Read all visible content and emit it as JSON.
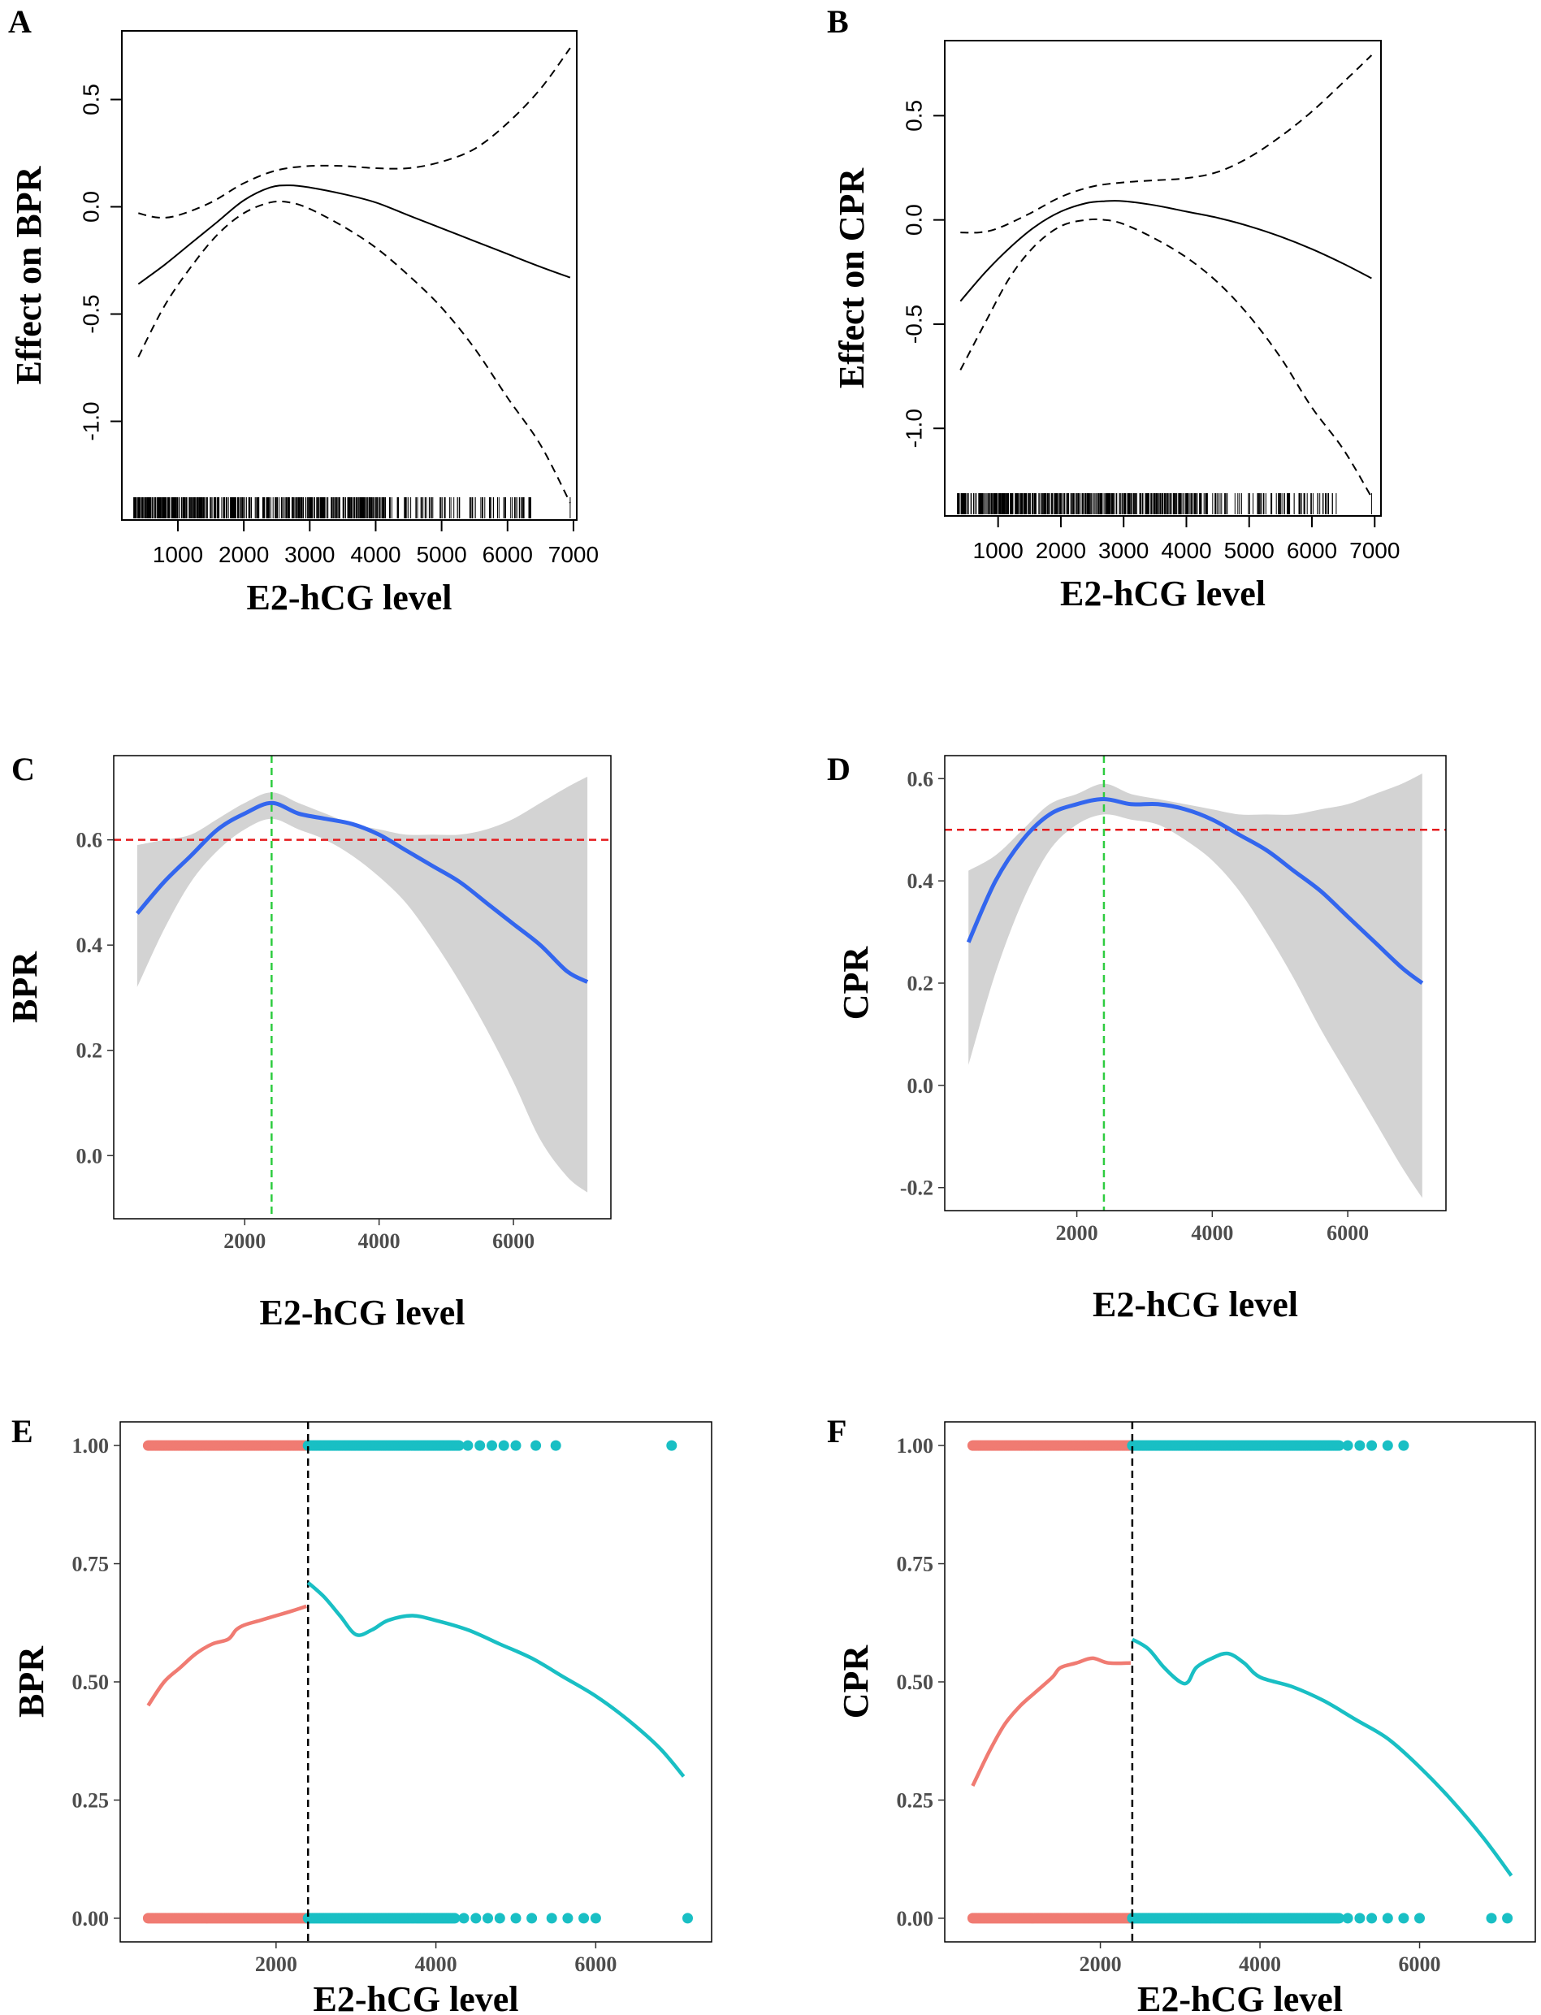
{
  "chart_data": [
    {
      "panel": "A",
      "type": "line",
      "xlabel": "E2-hCG level",
      "ylabel": "Effect on BPR",
      "xlim": [
        150,
        7050
      ],
      "ylim": [
        -1.46,
        0.82
      ],
      "xticks": [
        1000,
        2000,
        3000,
        4000,
        5000,
        6000,
        7000
      ],
      "yticks": [
        -1.0,
        -0.5,
        0.0,
        0.5
      ],
      "ytick_labels": [
        "-1.0",
        "-0.5",
        "0.0",
        "0.5"
      ],
      "series": [
        {
          "role": "fit",
          "style": "solid",
          "x": [
            400,
            800,
            1200,
            1600,
            2000,
            2400,
            2700,
            3000,
            3500,
            4000,
            4500,
            5000,
            5500,
            6000,
            6500,
            6950
          ],
          "y": [
            -0.36,
            -0.27,
            -0.17,
            -0.07,
            0.03,
            0.09,
            0.1,
            0.09,
            0.06,
            0.02,
            -0.04,
            -0.1,
            -0.16,
            -0.22,
            -0.28,
            -0.33
          ]
        },
        {
          "role": "upper",
          "style": "dashed",
          "x": [
            400,
            700,
            1000,
            1500,
            2000,
            2500,
            3000,
            3500,
            4000,
            4500,
            5000,
            5500,
            6000,
            6500,
            6950
          ],
          "y": [
            -0.03,
            -0.05,
            -0.04,
            0.02,
            0.11,
            0.17,
            0.19,
            0.19,
            0.18,
            0.18,
            0.21,
            0.27,
            0.39,
            0.55,
            0.74
          ]
        },
        {
          "role": "lower",
          "style": "dashed",
          "x": [
            400,
            800,
            1200,
            1600,
            2000,
            2400,
            2700,
            3000,
            3500,
            4000,
            4500,
            5000,
            5500,
            6000,
            6500,
            6950
          ],
          "y": [
            -0.7,
            -0.46,
            -0.28,
            -0.13,
            -0.03,
            0.02,
            0.02,
            -0.01,
            -0.09,
            -0.19,
            -0.32,
            -0.47,
            -0.66,
            -0.89,
            -1.11,
            -1.38
          ]
        }
      ],
      "rug_range": [
        330,
        6950
      ]
    },
    {
      "panel": "B",
      "type": "line",
      "xlabel": "E2-hCG level",
      "ylabel": "Effect on CPR",
      "xlim": [
        150,
        7100
      ],
      "ylim": [
        -1.42,
        0.86
      ],
      "xticks": [
        1000,
        2000,
        3000,
        4000,
        5000,
        6000,
        7000
      ],
      "yticks": [
        -1.0,
        -0.5,
        0.0,
        0.5
      ],
      "ytick_labels": [
        "-1.0",
        "-0.5",
        "0.0",
        "0.5"
      ],
      "series": [
        {
          "role": "fit",
          "style": "solid",
          "x": [
            400,
            800,
            1200,
            1600,
            2000,
            2400,
            2700,
            3000,
            3500,
            4000,
            4500,
            5000,
            5500,
            6000,
            6500,
            6950
          ],
          "y": [
            -0.39,
            -0.25,
            -0.13,
            -0.03,
            0.04,
            0.08,
            0.09,
            0.09,
            0.07,
            0.04,
            0.01,
            -0.03,
            -0.08,
            -0.14,
            -0.21,
            -0.28
          ]
        },
        {
          "role": "upper",
          "style": "dashed",
          "x": [
            400,
            700,
            1000,
            1500,
            2000,
            2500,
            3000,
            3500,
            4000,
            4500,
            5000,
            5500,
            6000,
            6500,
            6950
          ],
          "y": [
            -0.06,
            -0.06,
            -0.04,
            0.03,
            0.11,
            0.16,
            0.18,
            0.19,
            0.2,
            0.23,
            0.3,
            0.4,
            0.52,
            0.66,
            0.79
          ]
        },
        {
          "role": "lower",
          "style": "dashed",
          "x": [
            400,
            800,
            1200,
            1600,
            2000,
            2400,
            2700,
            3000,
            3500,
            4000,
            4500,
            5000,
            5500,
            6000,
            6500,
            6950
          ],
          "y": [
            -0.72,
            -0.49,
            -0.27,
            -0.12,
            -0.03,
            0.0,
            0.0,
            -0.02,
            -0.09,
            -0.18,
            -0.3,
            -0.46,
            -0.66,
            -0.9,
            -1.1,
            -1.33
          ]
        }
      ],
      "rug_range": [
        350,
        6950
      ]
    },
    {
      "panel": "C",
      "type": "line",
      "xlabel": "E2-hCG level",
      "ylabel": "BPR",
      "xlim": [
        50,
        7450
      ],
      "ylim": [
        -0.12,
        0.76
      ],
      "xticks": [
        2000,
        4000,
        6000
      ],
      "yticks": [
        0.0,
        0.2,
        0.4,
        0.6
      ],
      "ytick_labels": [
        "0.0",
        "0.2",
        "0.4",
        "0.6"
      ],
      "hline": 0.6,
      "vline": 2400,
      "band_x": [
        400,
        800,
        1200,
        1600,
        2000,
        2400,
        2800,
        3200,
        3600,
        4000,
        4400,
        4800,
        5200,
        5600,
        6000,
        6400,
        6800,
        7100
      ],
      "band_upper": [
        0.59,
        0.6,
        0.61,
        0.64,
        0.67,
        0.69,
        0.67,
        0.65,
        0.63,
        0.62,
        0.61,
        0.61,
        0.61,
        0.62,
        0.64,
        0.67,
        0.7,
        0.72
      ],
      "band_lower": [
        0.32,
        0.43,
        0.52,
        0.58,
        0.62,
        0.64,
        0.62,
        0.6,
        0.57,
        0.53,
        0.48,
        0.41,
        0.33,
        0.24,
        0.14,
        0.03,
        -0.04,
        -0.07
      ],
      "series": [
        {
          "role": "fit",
          "x": [
            400,
            800,
            1200,
            1600,
            2000,
            2400,
            2800,
            3200,
            3600,
            4000,
            4400,
            4800,
            5200,
            5600,
            6000,
            6400,
            6800,
            7100
          ],
          "y": [
            0.46,
            0.52,
            0.57,
            0.62,
            0.65,
            0.67,
            0.65,
            0.64,
            0.63,
            0.61,
            0.58,
            0.55,
            0.52,
            0.48,
            0.44,
            0.4,
            0.35,
            0.33
          ]
        }
      ]
    },
    {
      "panel": "D",
      "type": "line",
      "xlabel": "E2-hCG level",
      "ylabel": "CPR",
      "xlim": [
        50,
        7450
      ],
      "ylim": [
        -0.245,
        0.645
      ],
      "xticks": [
        2000,
        4000,
        6000
      ],
      "yticks": [
        -0.2,
        0.0,
        0.2,
        0.4,
        0.6
      ],
      "ytick_labels": [
        "-0.2",
        "0.0",
        "0.2",
        "0.4",
        "0.6"
      ],
      "hline": 0.5,
      "vline": 2400,
      "band_x": [
        400,
        800,
        1200,
        1600,
        2000,
        2400,
        2800,
        3200,
        3600,
        4000,
        4400,
        4800,
        5200,
        5600,
        6000,
        6400,
        6800,
        7100
      ],
      "band_upper": [
        0.42,
        0.45,
        0.5,
        0.55,
        0.57,
        0.59,
        0.57,
        0.56,
        0.55,
        0.54,
        0.53,
        0.53,
        0.53,
        0.54,
        0.55,
        0.57,
        0.59,
        0.61
      ],
      "band_lower": [
        0.04,
        0.22,
        0.36,
        0.46,
        0.51,
        0.53,
        0.52,
        0.51,
        0.48,
        0.44,
        0.38,
        0.3,
        0.21,
        0.11,
        0.02,
        -0.07,
        -0.16,
        -0.22
      ],
      "series": [
        {
          "role": "fit",
          "x": [
            400,
            800,
            1200,
            1600,
            2000,
            2400,
            2800,
            3200,
            3600,
            4000,
            4400,
            4800,
            5200,
            5600,
            6000,
            6400,
            6800,
            7100
          ],
          "y": [
            0.28,
            0.4,
            0.48,
            0.53,
            0.55,
            0.56,
            0.55,
            0.55,
            0.54,
            0.52,
            0.49,
            0.46,
            0.42,
            0.38,
            0.33,
            0.28,
            0.23,
            0.2
          ]
        }
      ]
    },
    {
      "panel": "E",
      "type": "scatter",
      "xlabel": "E2-hCG level",
      "ylabel": "BPR",
      "xlim": [
        50,
        7450
      ],
      "ylim": [
        -0.05,
        1.05
      ],
      "xticks": [
        2000,
        4000,
        6000
      ],
      "yticks": [
        0.0,
        0.25,
        0.5,
        0.75,
        1.0
      ],
      "ytick_labels": [
        "0.00",
        "0.25",
        "0.50",
        "0.75",
        "1.00"
      ],
      "vline": 2400,
      "colors": {
        "low": "#f07b72",
        "high": "#19bfc4"
      },
      "points": {
        "low_1_range": [
          400,
          2400
        ],
        "high_1_range": [
          2400,
          4300
        ],
        "high_1_extra": [
          4400,
          4550,
          4700,
          4850,
          5000,
          5250,
          5500,
          6950
        ],
        "low_0_range": [
          400,
          2400
        ],
        "high_0_range": [
          2400,
          4250
        ],
        "high_0_extra": [
          4350,
          4500,
          4650,
          4800,
          5000,
          5200,
          5450,
          5650,
          5850,
          6000,
          7150
        ]
      },
      "series": [
        {
          "name_ref": "low",
          "x": [
            400,
            600,
            800,
            1000,
            1200,
            1400,
            1500,
            1600,
            1800,
            2000,
            2200,
            2380
          ],
          "y": [
            0.45,
            0.5,
            0.53,
            0.56,
            0.58,
            0.59,
            0.61,
            0.62,
            0.63,
            0.64,
            0.65,
            0.66
          ]
        },
        {
          "name_ref": "high",
          "x": [
            2400,
            2600,
            2800,
            3000,
            3200,
            3400,
            3700,
            4000,
            4400,
            4800,
            5200,
            5600,
            6000,
            6400,
            6800,
            7100
          ],
          "y": [
            0.71,
            0.68,
            0.64,
            0.6,
            0.61,
            0.63,
            0.64,
            0.63,
            0.61,
            0.58,
            0.55,
            0.51,
            0.47,
            0.42,
            0.36,
            0.3
          ]
        }
      ]
    },
    {
      "panel": "F",
      "type": "scatter",
      "xlabel": "E2-hCG level",
      "ylabel": "CPR",
      "xlim": [
        50,
        7450
      ],
      "ylim": [
        -0.05,
        1.05
      ],
      "xticks": [
        2000,
        4000,
        6000
      ],
      "yticks": [
        0.0,
        0.25,
        0.5,
        0.75,
        1.0
      ],
      "ytick_labels": [
        "0.00",
        "0.25",
        "0.50",
        "0.75",
        "1.00"
      ],
      "vline": 2400,
      "colors": {
        "low": "#f07b72",
        "high": "#19bfc4"
      },
      "points": {
        "low_1_range": [
          400,
          2400
        ],
        "high_1_range": [
          2400,
          5000
        ],
        "high_1_extra": [
          5100,
          5250,
          5400,
          5600,
          5800
        ],
        "low_0_range": [
          400,
          2400
        ],
        "high_0_range": [
          2400,
          5000
        ],
        "high_0_extra": [
          5100,
          5250,
          5400,
          5600,
          5800,
          6000,
          6900,
          7100
        ]
      },
      "series": [
        {
          "name_ref": "low",
          "x": [
            400,
            600,
            800,
            1000,
            1200,
            1400,
            1500,
            1700,
            1900,
            2100,
            2380
          ],
          "y": [
            0.28,
            0.35,
            0.41,
            0.45,
            0.48,
            0.51,
            0.53,
            0.54,
            0.55,
            0.54,
            0.54
          ]
        },
        {
          "name_ref": "high",
          "x": [
            2400,
            2600,
            2800,
            3000,
            3100,
            3200,
            3400,
            3600,
            3800,
            4000,
            4400,
            4800,
            5200,
            5600,
            6000,
            6400,
            6800,
            7150
          ],
          "y": [
            0.59,
            0.57,
            0.53,
            0.5,
            0.5,
            0.53,
            0.55,
            0.56,
            0.54,
            0.51,
            0.49,
            0.46,
            0.42,
            0.38,
            0.32,
            0.25,
            0.17,
            0.09
          ]
        }
      ]
    }
  ]
}
